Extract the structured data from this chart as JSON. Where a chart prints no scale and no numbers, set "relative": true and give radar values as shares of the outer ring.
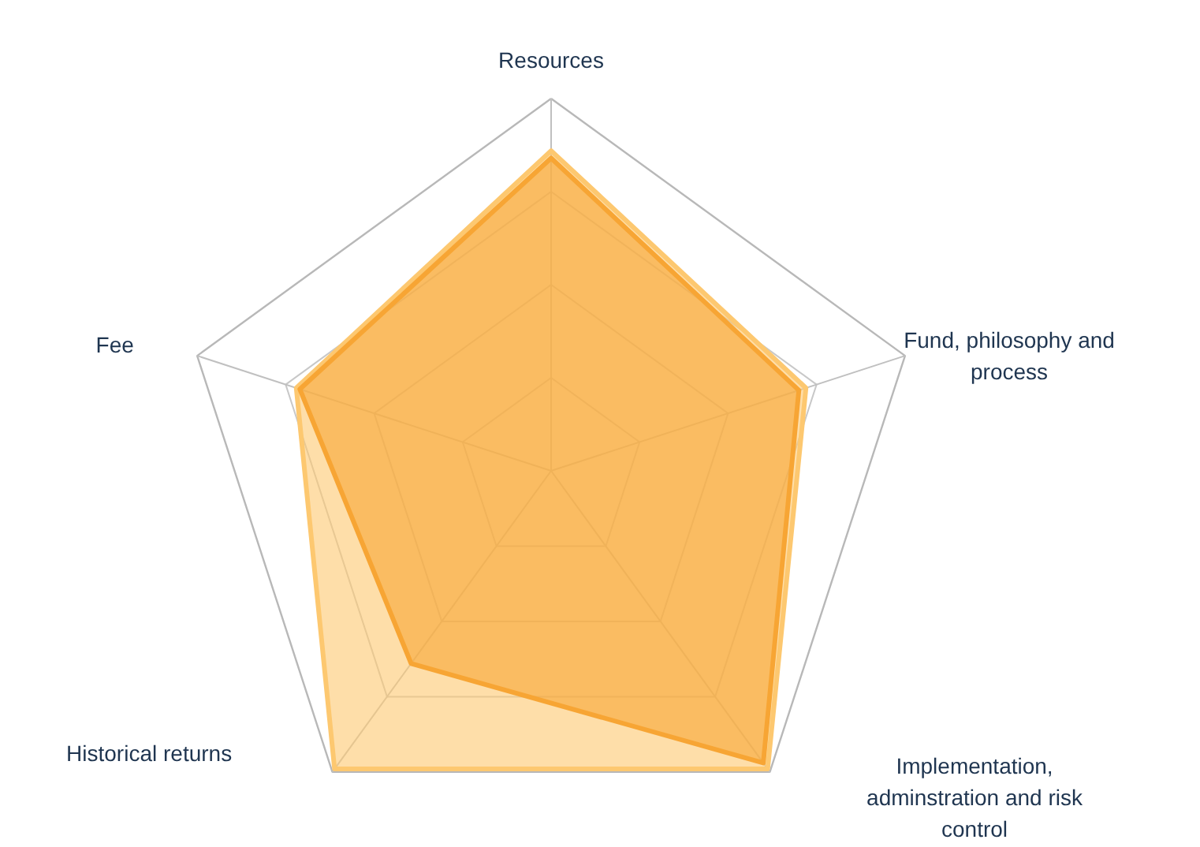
{
  "chart_data": {
    "type": "radar",
    "relative": true,
    "grid": true,
    "categories": [
      "Resources",
      "Fund, philosophy and process",
      "Implementation, adminstration and risk control",
      "Historical returns",
      "Fee"
    ],
    "series": [
      {
        "color": "#fdc870",
        "values": [
          0.86,
          0.72,
          0.99,
          0.99,
          0.72
        ]
      },
      {
        "color": "#f7a534",
        "values": [
          0.84,
          0.7,
          0.97,
          0.64,
          0.71
        ]
      }
    ]
  }
}
